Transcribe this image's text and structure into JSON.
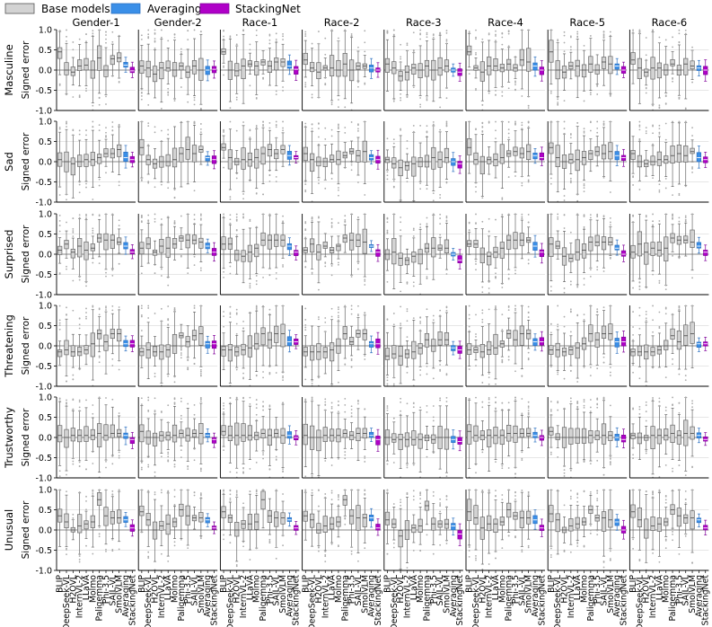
{
  "chart_data": {
    "type": "box",
    "legend": {
      "placement": "top-left",
      "items": [
        {
          "label": "Base models",
          "color": "#d3d3d3"
        },
        {
          "label": "Averaging",
          "color": "#3a8fe8"
        },
        {
          "label": "StackingNet",
          "color": "#b000c8"
        }
      ]
    },
    "ylabel": "Signed error",
    "ylim": [
      -1.0,
      1.0
    ],
    "yticks": [
      "1.0",
      "0.5",
      "0.0",
      "-0.5",
      "-1.0"
    ],
    "ytick_values": [
      1.0,
      0.5,
      0.0,
      -0.5,
      -1.0
    ],
    "groups": [
      "Gender-1",
      "Gender-2",
      "Race-1",
      "Race-2",
      "Race-3",
      "Race-4",
      "Race-5",
      "Race-6"
    ],
    "models": [
      "BLIP",
      "DeepSeek-VL",
      "H2OVL",
      "InternVL-2",
      "LLaVA",
      "Molmo",
      "Paligemma",
      "Phi-3.5",
      "SAIL-VL",
      "SmolVLM",
      "Averaging",
      "StackingNet"
    ],
    "traits": [
      "Masculine",
      "Sad",
      "Surprised",
      "Threatening",
      "Trustworthy",
      "Unusual"
    ],
    "approx_medians": {
      "Masculine": {
        "Gender-1": [
          0.45,
          0.0,
          -0.05,
          0.1,
          0.12,
          0.0,
          0.3,
          0.0,
          0.28,
          0.3,
          0.12,
          -0.02
        ],
        "Gender-2": [
          0.1,
          0.05,
          -0.1,
          0.05,
          0.05,
          0.0,
          0.1,
          -0.05,
          0.1,
          0.0,
          0.0,
          0.02
        ],
        "Race-1": [
          0.45,
          0.0,
          -0.02,
          0.1,
          0.15,
          0.1,
          0.2,
          0.1,
          0.2,
          0.2,
          0.1,
          0.02
        ],
        "Race-2": [
          0.25,
          0.05,
          -0.05,
          0.05,
          0.05,
          0.0,
          0.15,
          0.0,
          0.1,
          0.1,
          0.05,
          0.0
        ],
        "Race-3": [
          0.15,
          0.05,
          -0.15,
          -0.05,
          0.05,
          0.0,
          0.1,
          0.0,
          0.05,
          0.1,
          0.0,
          -0.05
        ],
        "Race-4": [
          0.45,
          0.05,
          -0.05,
          0.1,
          0.1,
          0.05,
          0.15,
          0.05,
          0.25,
          0.2,
          0.1,
          0.0
        ],
        "Race-5": [
          0.45,
          0.0,
          -0.05,
          0.1,
          0.1,
          0.0,
          0.15,
          0.0,
          0.2,
          0.15,
          0.1,
          0.0
        ],
        "Race-6": [
          0.25,
          0.05,
          -0.05,
          0.05,
          0.05,
          0.0,
          0.15,
          0.0,
          0.15,
          0.1,
          0.05,
          0.0
        ]
      },
      "Sad": {
        "Gender-1": [
          0.05,
          0.0,
          -0.05,
          0.0,
          0.05,
          0.05,
          0.1,
          0.2,
          0.2,
          0.3,
          0.1,
          0.05
        ],
        "Gender-2": [
          0.35,
          0.05,
          -0.05,
          0.0,
          0.0,
          0.05,
          0.2,
          0.3,
          0.2,
          0.3,
          0.1,
          0.05
        ],
        "Race-1": [
          0.35,
          0.1,
          0.0,
          0.05,
          0.05,
          0.1,
          0.2,
          0.3,
          0.2,
          0.3,
          0.15,
          0.1
        ],
        "Race-2": [
          0.2,
          0.05,
          0.0,
          0.0,
          0.05,
          0.05,
          0.15,
          0.25,
          0.15,
          0.25,
          0.1,
          0.05
        ],
        "Race-3": [
          0.05,
          -0.05,
          -0.15,
          -0.1,
          -0.05,
          0.0,
          0.0,
          0.1,
          0.05,
          0.1,
          0.0,
          -0.05
        ],
        "Race-4": [
          0.35,
          0.05,
          0.0,
          0.05,
          0.05,
          0.1,
          0.2,
          0.25,
          0.2,
          0.25,
          0.15,
          0.1
        ],
        "Race-5": [
          0.35,
          0.1,
          0.0,
          0.05,
          0.05,
          0.1,
          0.2,
          0.25,
          0.2,
          0.25,
          0.15,
          0.1
        ],
        "Race-6": [
          0.2,
          0.0,
          -0.05,
          0.0,
          0.05,
          0.05,
          0.15,
          0.2,
          0.15,
          0.25,
          0.1,
          0.05
        ]
      },
      "Surprised": {
        "Gender-1": [
          0.1,
          0.25,
          0.05,
          0.2,
          0.1,
          0.15,
          0.4,
          0.35,
          0.35,
          0.3,
          0.2,
          0.05
        ],
        "Gender-2": [
          0.15,
          0.25,
          0.05,
          0.2,
          0.15,
          0.25,
          0.4,
          0.35,
          0.35,
          0.3,
          0.2,
          0.05
        ],
        "Race-1": [
          0.25,
          0.25,
          0.0,
          -0.05,
          0.05,
          0.15,
          0.35,
          0.35,
          0.35,
          0.35,
          0.2,
          0.05
        ],
        "Race-2": [
          0.1,
          0.25,
          0.05,
          0.2,
          0.1,
          0.2,
          0.4,
          0.35,
          0.35,
          0.3,
          0.2,
          0.05
        ],
        "Race-3": [
          0.0,
          0.05,
          -0.1,
          -0.15,
          -0.05,
          0.0,
          0.15,
          0.15,
          0.15,
          0.15,
          0.0,
          -0.15
        ],
        "Race-4": [
          0.25,
          0.25,
          0.0,
          -0.05,
          0.05,
          0.15,
          0.35,
          0.35,
          0.35,
          0.35,
          0.2,
          0.05
        ],
        "Race-5": [
          0.25,
          0.2,
          -0.05,
          -0.1,
          0.05,
          0.1,
          0.3,
          0.3,
          0.3,
          0.3,
          0.15,
          0.0
        ],
        "Race-6": [
          0.05,
          0.25,
          0.05,
          0.15,
          0.1,
          0.15,
          0.4,
          0.35,
          0.35,
          0.3,
          0.2,
          0.05
        ]
      },
      "Threatening": {
        "Gender-1": [
          -0.15,
          -0.1,
          -0.15,
          -0.15,
          -0.1,
          0.05,
          0.3,
          0.1,
          0.3,
          0.3,
          0.05,
          0.05
        ],
        "Gender-2": [
          -0.15,
          -0.1,
          -0.15,
          -0.15,
          -0.1,
          0.0,
          0.25,
          0.1,
          0.25,
          0.3,
          0.05,
          0.05
        ],
        "Race-1": [
          -0.1,
          -0.1,
          -0.15,
          -0.1,
          -0.05,
          0.05,
          0.3,
          0.15,
          0.3,
          0.3,
          0.1,
          0.1
        ],
        "Race-2": [
          -0.15,
          -0.15,
          -0.15,
          -0.15,
          -0.1,
          0.0,
          0.3,
          0.1,
          0.3,
          0.3,
          0.05,
          0.05
        ],
        "Race-3": [
          -0.25,
          -0.2,
          -0.25,
          -0.2,
          -0.15,
          -0.05,
          0.15,
          0.0,
          0.15,
          0.15,
          -0.05,
          -0.1
        ],
        "Race-4": [
          -0.1,
          -0.1,
          -0.15,
          -0.1,
          -0.05,
          0.05,
          0.3,
          0.15,
          0.3,
          0.3,
          0.1,
          0.1
        ],
        "Race-5": [
          -0.1,
          -0.1,
          -0.15,
          -0.1,
          -0.05,
          0.05,
          0.3,
          0.15,
          0.3,
          0.3,
          0.1,
          0.1
        ],
        "Race-6": [
          -0.15,
          -0.15,
          -0.15,
          -0.15,
          -0.1,
          0.0,
          0.25,
          0.1,
          0.25,
          0.3,
          0.05,
          0.05
        ]
      },
      "Trustworthy": {
        "Gender-1": [
          0.05,
          0.0,
          0.05,
          0.05,
          0.05,
          0.05,
          0.1,
          0.05,
          0.1,
          0.1,
          0.05,
          -0.05
        ],
        "Gender-2": [
          0.15,
          0.0,
          0.0,
          0.05,
          0.05,
          0.05,
          0.1,
          0.05,
          0.1,
          0.1,
          0.05,
          -0.05
        ],
        "Race-1": [
          0.15,
          0.05,
          0.05,
          0.05,
          0.05,
          0.05,
          0.1,
          0.05,
          0.1,
          0.05,
          0.05,
          0.0
        ],
        "Race-2": [
          0.05,
          0.0,
          0.0,
          0.05,
          0.05,
          0.05,
          0.1,
          0.05,
          0.1,
          0.1,
          0.05,
          -0.05
        ],
        "Race-3": [
          0.0,
          -0.05,
          -0.05,
          -0.05,
          -0.05,
          -0.05,
          0.0,
          -0.05,
          0.0,
          0.0,
          -0.05,
          -0.1
        ],
        "Race-4": [
          0.15,
          0.05,
          0.05,
          0.05,
          0.05,
          0.05,
          0.1,
          0.1,
          0.1,
          0.1,
          0.05,
          0.0
        ],
        "Race-5": [
          0.15,
          0.0,
          0.0,
          0.0,
          0.0,
          0.0,
          0.05,
          0.05,
          0.05,
          0.05,
          0.0,
          -0.05
        ],
        "Race-6": [
          0.05,
          0.0,
          0.0,
          0.05,
          0.05,
          0.05,
          0.1,
          0.05,
          0.1,
          0.1,
          0.05,
          -0.05
        ]
      },
      "Unusual": {
        "Gender-1": [
          0.35,
          0.2,
          0.0,
          0.1,
          0.15,
          0.2,
          0.75,
          0.35,
          0.3,
          0.3,
          0.25,
          0.05
        ],
        "Gender-2": [
          0.45,
          0.25,
          0.0,
          0.1,
          0.15,
          0.2,
          0.5,
          0.35,
          0.3,
          0.3,
          0.25,
          0.05
        ],
        "Race-1": [
          0.45,
          0.3,
          0.0,
          0.15,
          0.15,
          0.2,
          0.75,
          0.35,
          0.3,
          0.3,
          0.25,
          0.05
        ],
        "Race-2": [
          0.35,
          0.25,
          0.0,
          0.1,
          0.15,
          0.2,
          0.75,
          0.35,
          0.3,
          0.3,
          0.3,
          0.05
        ],
        "Race-3": [
          0.25,
          0.15,
          -0.15,
          0.0,
          0.05,
          0.1,
          0.6,
          0.15,
          0.15,
          0.15,
          0.1,
          -0.1
        ],
        "Race-4": [
          0.45,
          0.3,
          0.05,
          0.15,
          0.15,
          0.2,
          0.5,
          0.35,
          0.3,
          0.3,
          0.25,
          0.05
        ],
        "Race-5": [
          0.4,
          0.25,
          0.0,
          0.1,
          0.15,
          0.2,
          0.5,
          0.3,
          0.3,
          0.25,
          0.2,
          0.0
        ],
        "Race-6": [
          0.45,
          0.25,
          0.0,
          0.1,
          0.15,
          0.2,
          0.5,
          0.35,
          0.3,
          0.3,
          0.25,
          0.05
        ]
      }
    },
    "box_colors": {
      "base": "#d3d3d3",
      "averaging": "#3a8fe8",
      "stacking": "#b000c8"
    },
    "grid": true
  }
}
